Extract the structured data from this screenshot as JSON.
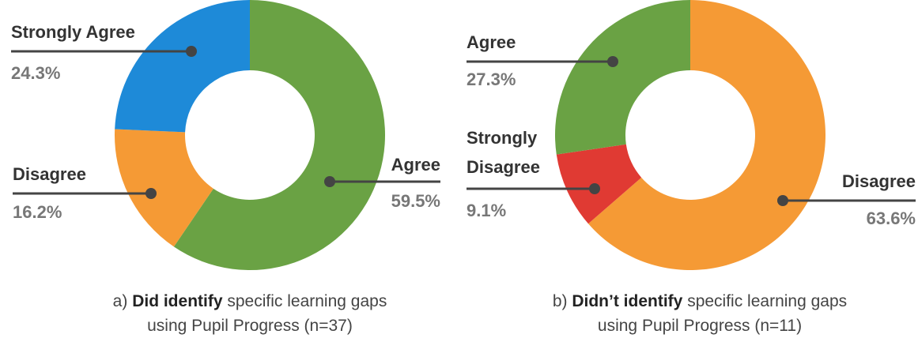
{
  "chart_data": [
    {
      "type": "pie",
      "categories": [
        "Agree",
        "Disagree",
        "Strongly Agree"
      ],
      "values": [
        59.5,
        16.2,
        24.3
      ],
      "value_labels": [
        "59.5%",
        "16.2%",
        "24.3%"
      ],
      "colors": [
        "#6aa244",
        "#f59a35",
        "#1e8ad8"
      ],
      "caption": {
        "prefix": "a)",
        "emphasis": "Did identify",
        "rest": "specific learning gaps using Pupil Progress (n=37)"
      }
    },
    {
      "type": "pie",
      "categories": [
        "Disagree",
        "Strongly Disagree",
        "Agree"
      ],
      "values": [
        63.6,
        9.1,
        27.3
      ],
      "value_labels": [
        "63.6%",
        "9.1%",
        "27.3%"
      ],
      "colors": [
        "#f59a35",
        "#e03a33",
        "#6aa244"
      ],
      "caption": {
        "prefix": "b)",
        "emphasis": "Didn’t identify",
        "rest": "specific learning gaps using Pupil Progress (n=11)"
      }
    }
  ]
}
